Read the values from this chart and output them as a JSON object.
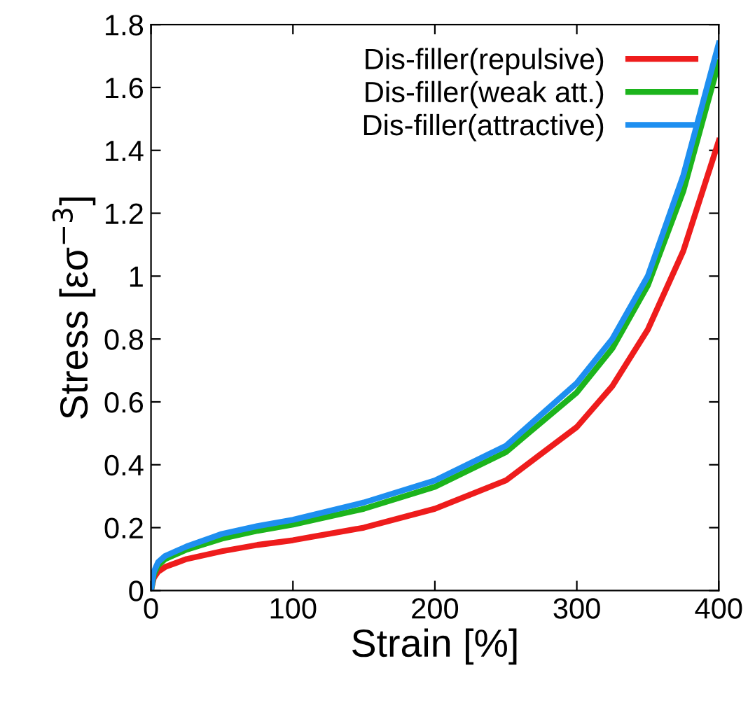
{
  "chart_data": {
    "type": "line",
    "xlabel": "Strain [%]",
    "ylabel": "Stress [εσ$^{−3}$]",
    "x": [
      0,
      2,
      5,
      10,
      25,
      50,
      75,
      100,
      150,
      200,
      250,
      300,
      325,
      350,
      375,
      400
    ],
    "series": [
      {
        "name": "Dis-filler(repulsive)",
        "color": "#ee1c1c",
        "values": [
          0,
          0.04,
          0.06,
          0.075,
          0.1,
          0.125,
          0.145,
          0.16,
          0.2,
          0.26,
          0.35,
          0.52,
          0.65,
          0.83,
          1.08,
          1.43
        ]
      },
      {
        "name": "Dis-filler(weak att.)",
        "color": "#1cb41c",
        "values": [
          0,
          0.05,
          0.08,
          0.1,
          0.13,
          0.165,
          0.19,
          0.21,
          0.26,
          0.33,
          0.44,
          0.63,
          0.77,
          0.97,
          1.27,
          1.68
        ]
      },
      {
        "name": "Dis-filler(attractive)",
        "color": "#1e8ff0",
        "values": [
          0,
          0.06,
          0.09,
          0.11,
          0.14,
          0.18,
          0.205,
          0.225,
          0.28,
          0.35,
          0.46,
          0.66,
          0.8,
          1.0,
          1.32,
          1.74
        ]
      }
    ],
    "xlim": [
      0,
      400
    ],
    "xticks": [
      0,
      100,
      200,
      300,
      400
    ],
    "ylim": [
      0,
      1.8
    ],
    "yticks": [
      0,
      0.2,
      0.4,
      0.6,
      0.8,
      1,
      1.2,
      1.4,
      1.6,
      1.8
    ],
    "grid": false,
    "legend": "top right",
    "marker": "none",
    "line_style": "solid"
  }
}
